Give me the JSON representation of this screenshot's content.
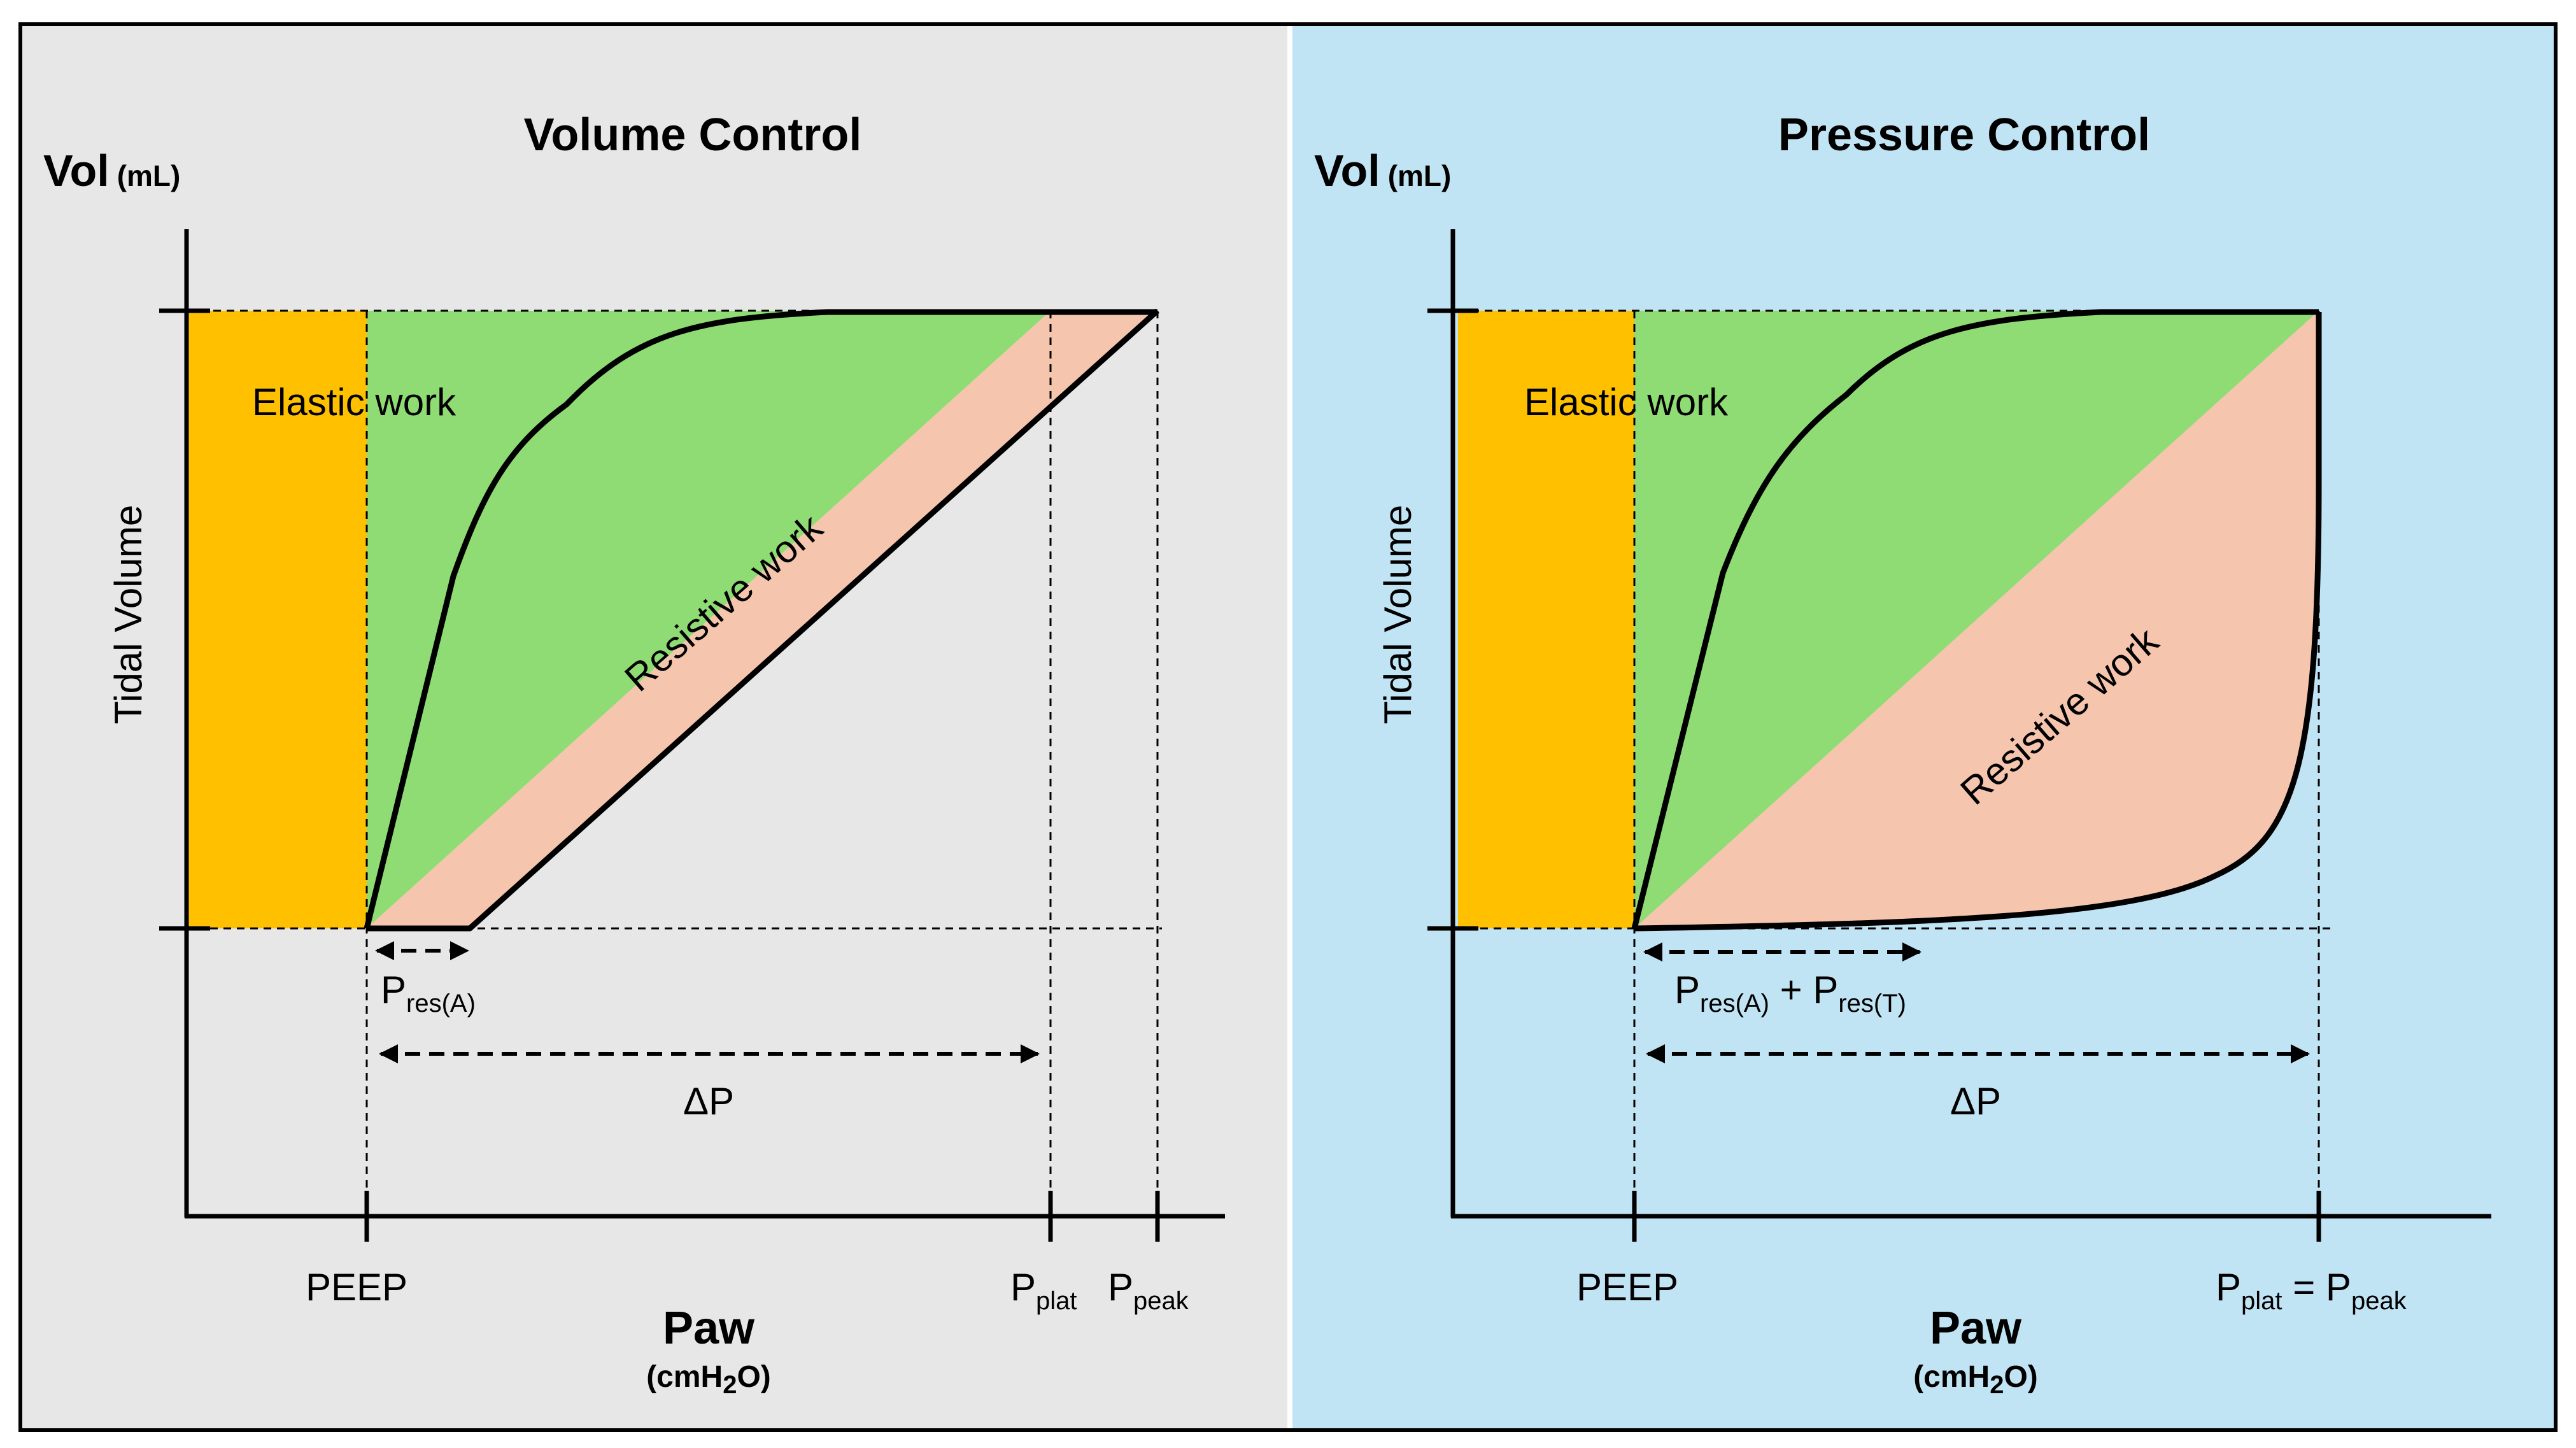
{
  "colors": {
    "volume_panel_bg": "#E7E7E7",
    "pressure_panel_bg": "#C1E4F4",
    "peep_region": "#FFC000",
    "elastic_region": "#8FDB74",
    "resistive_region": "#F6C5AD",
    "line": "#000000"
  },
  "panels": [
    {
      "title": "Volume Control",
      "y_axis": {
        "symbol": "Vol",
        "unit": "(mL)",
        "label": "Tidal Volume"
      },
      "x_axis": {
        "symbol": "Paw",
        "unit_main": "(cmH",
        "unit_sub": "2",
        "unit_end": "O)"
      },
      "regions": {
        "elastic": "Elastic work",
        "resistive": "Resistive work"
      },
      "x_ticks": {
        "peep": "PEEP",
        "p_plat_main": "P",
        "p_plat_sub": "plat",
        "p_peak_main": "P",
        "p_peak_sub": "peak"
      },
      "annotations": {
        "pres_main": "P",
        "pres_sub": "res(A)",
        "delta_p": "ΔP"
      }
    },
    {
      "title": "Pressure Control",
      "y_axis": {
        "symbol": "Vol",
        "unit": "(mL)",
        "label": "Tidal Volume"
      },
      "x_axis": {
        "symbol": "Paw",
        "unit_main": "(cmH",
        "unit_sub": "2",
        "unit_end": "O)"
      },
      "regions": {
        "elastic": "Elastic work",
        "resistive": "Resistive work"
      },
      "x_ticks": {
        "peep": "PEEP",
        "p_plat_main": "P",
        "p_plat_sub": "plat",
        "equals": " = ",
        "p_peak_main": "P",
        "p_peak_sub": "peak"
      },
      "annotations": {
        "pres_a_main": "P",
        "pres_a_sub": "res(A)",
        "plus": " + ",
        "pres_t_main": "P",
        "pres_t_sub": "res(T)",
        "delta_p": "ΔP"
      }
    }
  ]
}
